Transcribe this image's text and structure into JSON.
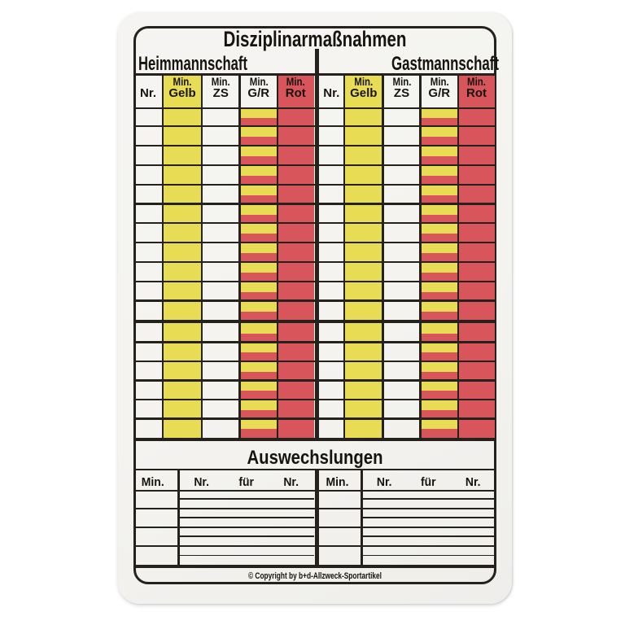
{
  "title": "Disziplinarmaßnahmen",
  "teams": {
    "home": "Heimmannschaft",
    "guest": "Gastmannschaft"
  },
  "disciplinary": {
    "columns": [
      {
        "id": "nr",
        "line1": "",
        "line2": "Nr.",
        "header_bg": "white",
        "cell_fill": "white"
      },
      {
        "id": "gelb",
        "line1": "Min.",
        "line2": "Gelb",
        "header_bg": "yellow",
        "cell_fill": "yellow"
      },
      {
        "id": "zs",
        "line1": "Min.",
        "line2": "ZS",
        "header_bg": "white",
        "cell_fill": "white"
      },
      {
        "id": "gr",
        "line1": "Min.",
        "line2": "G/R",
        "header_bg": "white",
        "cell_fill": "yellow-red"
      },
      {
        "id": "rot",
        "line1": "Min.",
        "line2": "Rot",
        "header_bg": "red",
        "cell_fill": "red"
      }
    ],
    "rows_upper_block": 11,
    "rows_lower_block": 6
  },
  "substitutions": {
    "title": "Auswechslungen",
    "min_header": "Min.",
    "wide_headers": [
      "Nr.",
      "für",
      "Nr."
    ],
    "rows": 4
  },
  "copyright": "© Copyright by b+d-Allzweck-Sportartikel",
  "colors": {
    "yellow": "#e8dc55",
    "red": "#d8555c",
    "line": "#25221e",
    "card": "#f4f3f0",
    "background": "#ffffff"
  }
}
